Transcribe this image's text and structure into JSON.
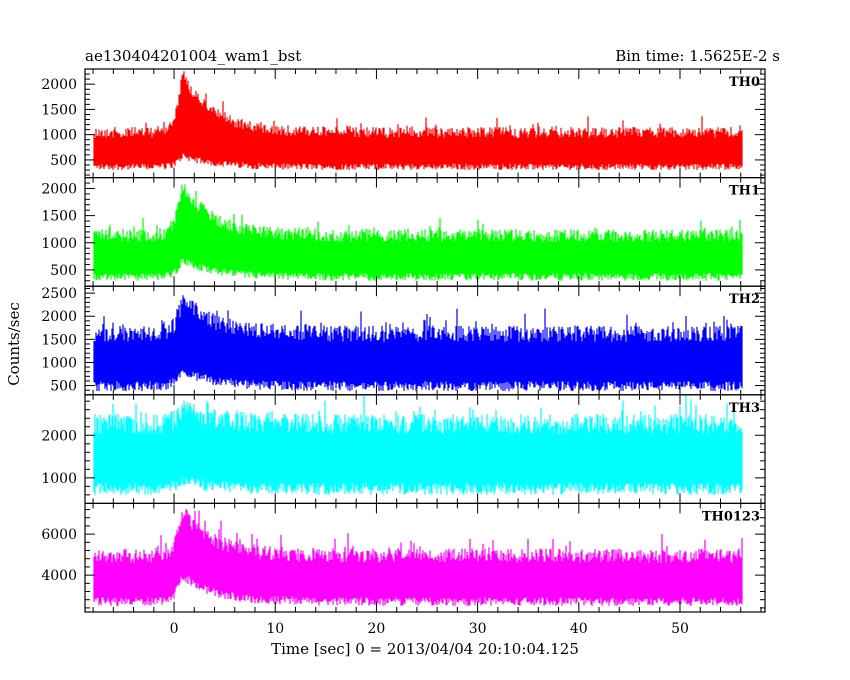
{
  "header": {
    "title": "ae130404201004_wam1_bst",
    "bin_time": "Bin time: 1.5625E-2 s"
  },
  "chart_data": {
    "type": "line",
    "title": "ae130404201004_wam1_bst",
    "xlabel": "Time [sec] 0 = 2013/04/04 20:10:04.125",
    "ylabel": "Counts/sec",
    "xlim": [
      -8.8,
      58.4
    ],
    "x_ticks": [
      0,
      10,
      20,
      30,
      40,
      50
    ],
    "data_range": [
      -7.9,
      56.1
    ],
    "panels": [
      {
        "name": "TH0",
        "color": "#ff0000",
        "ylim": [
          150,
          2300
        ],
        "y_ticks": [
          500,
          1000,
          1500,
          2000
        ],
        "baseline_low": 300,
        "baseline_high": 1150,
        "peak_time": 0.8,
        "peak_high": 2300,
        "peak_low": 520
      },
      {
        "name": "TH1",
        "color": "#00ff00",
        "ylim": [
          200,
          2200
        ],
        "y_ticks": [
          500,
          1000,
          1500,
          2000
        ],
        "baseline_low": 300,
        "baseline_high": 1250,
        "peak_time": 0.8,
        "peak_high": 2200,
        "peak_low": 620
      },
      {
        "name": "TH2",
        "color": "#0000ff",
        "ylim": [
          300,
          2650
        ],
        "y_ticks": [
          500,
          1000,
          1500,
          2000,
          2500
        ],
        "baseline_low": 380,
        "baseline_high": 1800,
        "peak_time": 0.8,
        "peak_high": 2550,
        "peak_low": 720
      },
      {
        "name": "TH3",
        "color": "#00ffff",
        "ylim": [
          400,
          2950
        ],
        "y_ticks": [
          1000,
          2000
        ],
        "baseline_low": 600,
        "baseline_high": 2500,
        "peak_time": 0.8,
        "peak_high": 2900,
        "peak_low": 800
      },
      {
        "name": "TH0123",
        "color": "#ff00ff",
        "ylim": [
          2200,
          7500
        ],
        "y_ticks": [
          4000,
          6000
        ],
        "baseline_low": 2500,
        "baseline_high": 5300,
        "peak_time": 0.8,
        "peak_high": 7500,
        "peak_low": 3800
      }
    ]
  }
}
